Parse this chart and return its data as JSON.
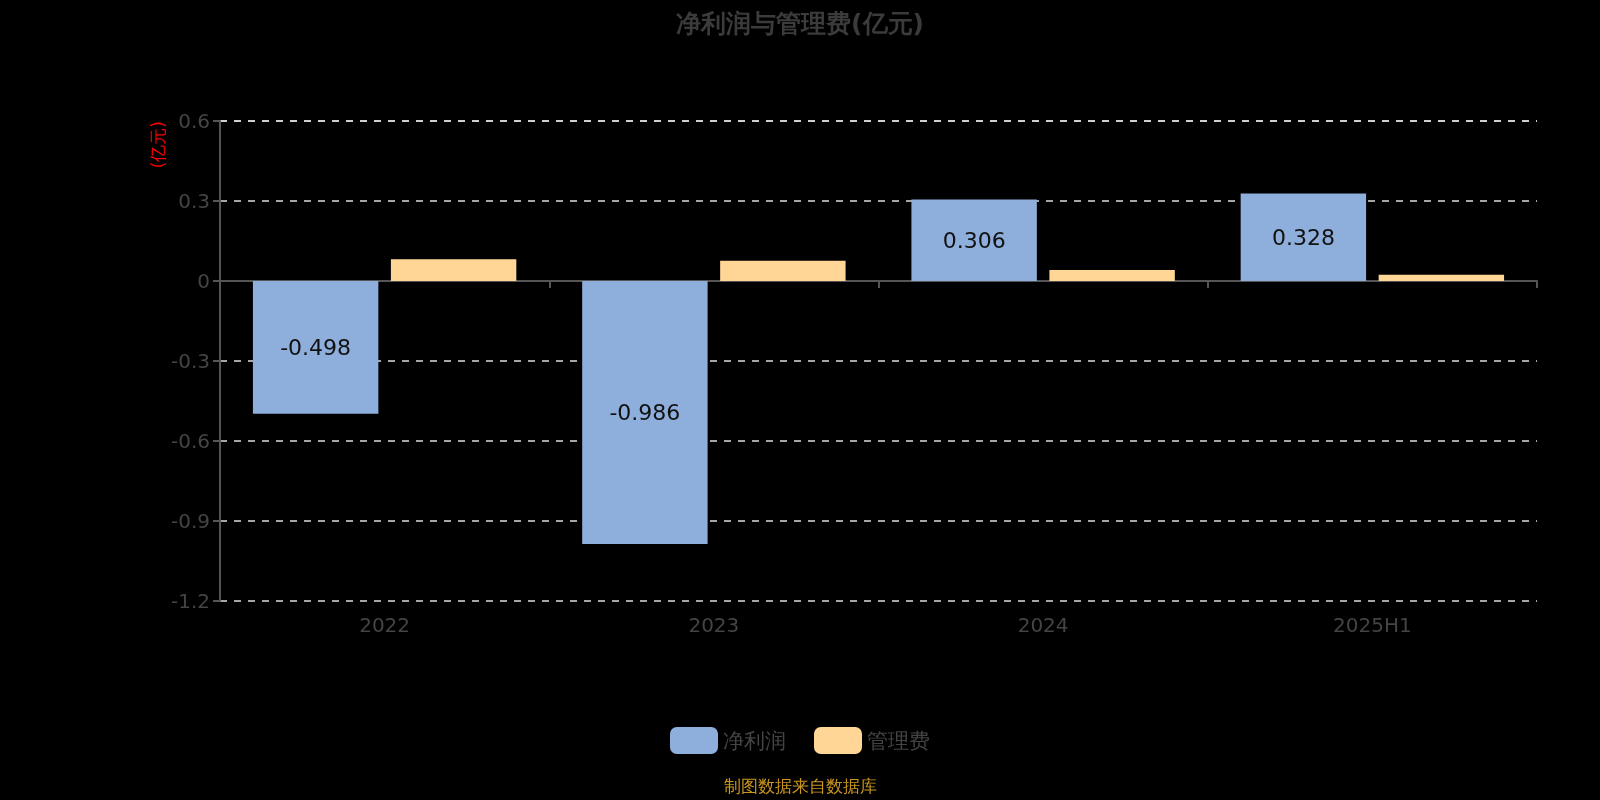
{
  "chart_data": {
    "type": "bar",
    "title": "净利润与管理费(亿元)",
    "ylabel": "(亿元)",
    "categories": [
      "2022",
      "2023",
      "2024",
      "2025H1"
    ],
    "series": [
      {
        "name": "净利润",
        "color": "#8eaedc",
        "values": [
          -0.498,
          -0.986,
          0.306,
          0.328
        ],
        "value_labels": [
          "-0.498",
          "-0.986",
          "0.306",
          "0.328"
        ]
      },
      {
        "name": "管理费",
        "color": "#ffd695",
        "values": [
          0.082,
          0.076,
          0.041,
          0.023
        ]
      }
    ],
    "ylim": [
      -1.2,
      0.6
    ],
    "yticks": [
      -1.2,
      -0.9,
      -0.6,
      -0.3,
      0,
      0.3,
      0.6
    ],
    "grid": "y",
    "legend": "bottom",
    "annotations": [
      "制图数据来自数据库"
    ]
  }
}
